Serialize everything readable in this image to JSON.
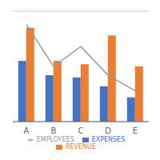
{
  "chart_data": {
    "type": "bar",
    "categories": [
      "A",
      "B",
      "C",
      "D",
      "E"
    ],
    "series": [
      {
        "name": "EXPENSES",
        "color": "#4472C4",
        "values": [
          55,
          42,
          40,
          32,
          22
        ]
      },
      {
        "name": "REVENUE",
        "color": "#ED7D31",
        "values": [
          85,
          55,
          52,
          78,
          50
        ]
      },
      {
        "name": "EMPLOYEES",
        "color": "#999999",
        "type": "line",
        "values": [
          88,
          50,
          68,
          42,
          28
        ]
      }
    ],
    "ylim": [
      0,
      100
    ],
    "yticks": [
      0,
      20,
      40,
      60,
      80,
      100
    ],
    "grid": true,
    "legend": "bottom",
    "tick_labels": "x"
  }
}
